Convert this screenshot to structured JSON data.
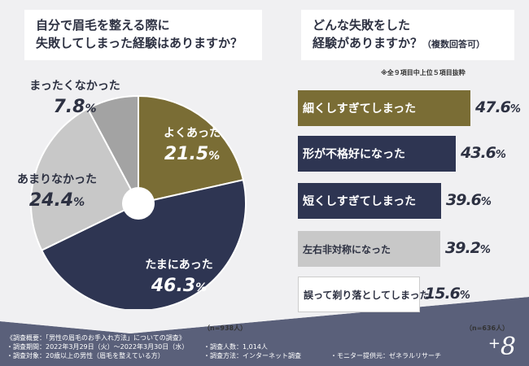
{
  "left_question": [
    "自分で眉毛を整える際に",
    "失敗してしまった経験はありますか？"
  ],
  "right_question": {
    "line1": "どんな失敗をした",
    "line2": "経験がありますか？",
    "suffix": "（複数回答可）"
  },
  "right_note": "※全９項目中上位５項目抜粋",
  "left_n": "（n=938人）",
  "right_n": "（n=636人）",
  "colors": {
    "olive": "#7a6d35",
    "navy": "#2e3552",
    "gray_light": "#c8c8c8",
    "gray_mid": "#a3a3a3",
    "background_band": "#5a607a"
  },
  "chart_data": [
    {
      "type": "pie",
      "title": "自分で眉毛を整える際に失敗してしまった経験はありますか？",
      "slices": [
        {
          "label": "よくあった",
          "value": 21.5,
          "color": "#7a6d35"
        },
        {
          "label": "たまにあった",
          "value": 46.3,
          "color": "#2e3552"
        },
        {
          "label": "あまりなかった",
          "value": 24.4,
          "color": "#c8c8c8"
        },
        {
          "label": "まったくなかった",
          "value": 7.8,
          "color": "#a3a3a3"
        }
      ],
      "unit": "%"
    },
    {
      "type": "bar",
      "title": "どんな失敗をした経験がありますか？（複数回答可）",
      "categories": [
        "細くしすぎてしまった",
        "形が不格好になった",
        "短くしすぎてしまった",
        "左右非対称になった",
        "誤って剃り落としてしまった"
      ],
      "values": [
        47.6,
        43.6,
        39.6,
        39.2,
        15.6
      ],
      "colors": [
        "#7a6d35",
        "#2e3552",
        "#2e3552",
        "#c8c8c8",
        "#ffffff"
      ],
      "unit": "%"
    }
  ],
  "footer": {
    "survey_overview": "《調査概要：「男性の眉毛のお手入れ方法」についての調査》",
    "period": "・調査期間：2022年3月29日（火）～2022年3月30日（水）",
    "target": "・調査対象：20歳以上の男性（眉毛を整えている方）",
    "respondents": "・調査人数：1,014人",
    "method": "・調査方法：インターネット調査",
    "provider": "・モニター提供元：ゼネラルリサーチ"
  },
  "brand": {
    "plus": "+",
    "mark": "8"
  }
}
